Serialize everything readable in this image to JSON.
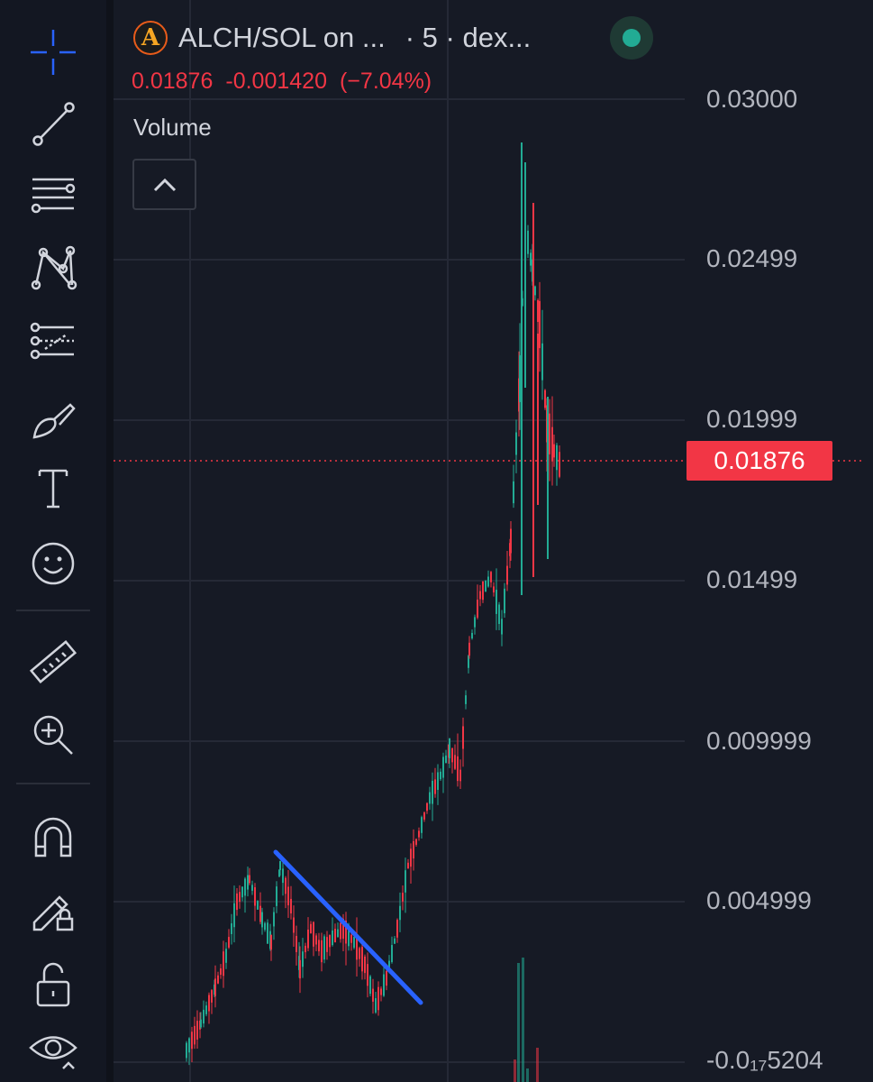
{
  "header": {
    "symbol": "ALCH/SOL on ...",
    "interval": "· 5 · dex...",
    "logo_letter": "A",
    "status_color": "#22ab94"
  },
  "ohlc": {
    "last": "0.01876",
    "change": "-0.001420",
    "change_pct": "(−7.04%)",
    "color": "#f23645"
  },
  "volume_label": "Volume",
  "price_axis": {
    "labels": [
      "0.03000",
      "0.02499",
      "0.01999",
      "0.01499",
      "0.009999",
      "0.004999",
      "-0.0₁₇5204"
    ],
    "last_price": "0.01876",
    "last_price_color": "#f23645"
  },
  "toolbar": {
    "tools": [
      "crosshair-icon",
      "trend-line-icon",
      "fib-retracement-icon",
      "pattern-icon",
      "prediction-icon",
      "brush-icon",
      "text-icon",
      "emoji-icon",
      "ruler-icon",
      "zoom-in-icon",
      "magnet-icon",
      "lock-drawing-icon",
      "unlock-icon",
      "eye-icon"
    ],
    "text_tool_glyph": "T"
  },
  "colors": {
    "up": "#22ab94",
    "down": "#f23645",
    "trendline": "#2962ff",
    "background": "#161a25",
    "grid": "#252936"
  }
}
